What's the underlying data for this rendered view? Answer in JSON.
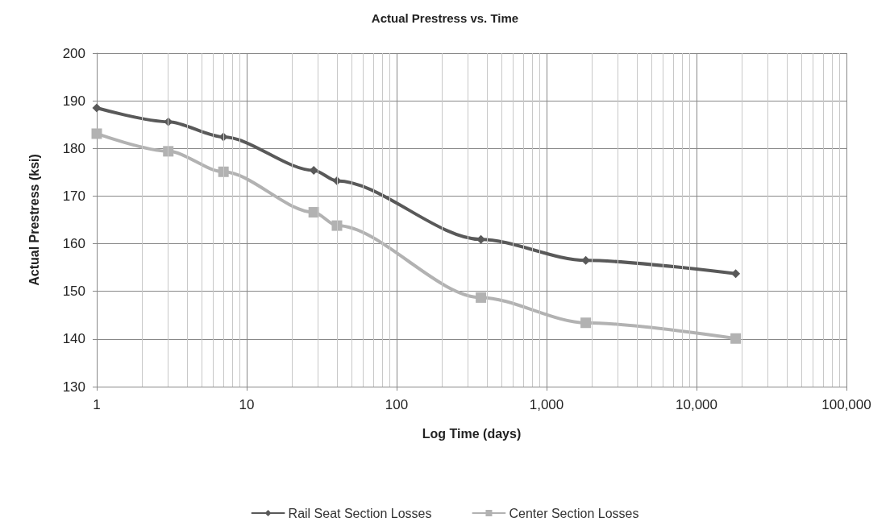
{
  "chart_data": {
    "type": "line",
    "title": "Actual Prestress vs. Time",
    "xlabel": "Log Time (days)",
    "ylabel": "Actual Prestress (ksi)",
    "log": "x",
    "grid": true,
    "legend": "bottom",
    "line_style": "solid",
    "xlim": [
      1,
      100000
    ],
    "xticks": [
      1,
      10,
      100,
      {
        "value": 1000,
        "label": "1,000"
      },
      {
        "value": 10000,
        "label": "10,000"
      },
      {
        "value": 100000,
        "label": "100,000"
      }
    ],
    "ylim": [
      130,
      200
    ],
    "yticks": [
      130,
      140,
      150,
      160,
      170,
      180,
      190,
      200
    ],
    "x": [
      1,
      3,
      7,
      28,
      40,
      365,
      1825,
      18250
    ],
    "series": [
      {
        "name": "Rail Seat Section Losses",
        "color": "#595959",
        "marker": "diamond",
        "values": [
          188.5,
          185.6,
          182.4,
          175.4,
          173.2,
          160.9,
          156.5,
          153.7
        ]
      },
      {
        "name": "Center Section Losses",
        "color": "#b2b2b2",
        "marker": "square",
        "values": [
          183.1,
          179.4,
          175.1,
          166.6,
          163.8,
          148.7,
          143.4,
          140.1
        ]
      }
    ]
  }
}
